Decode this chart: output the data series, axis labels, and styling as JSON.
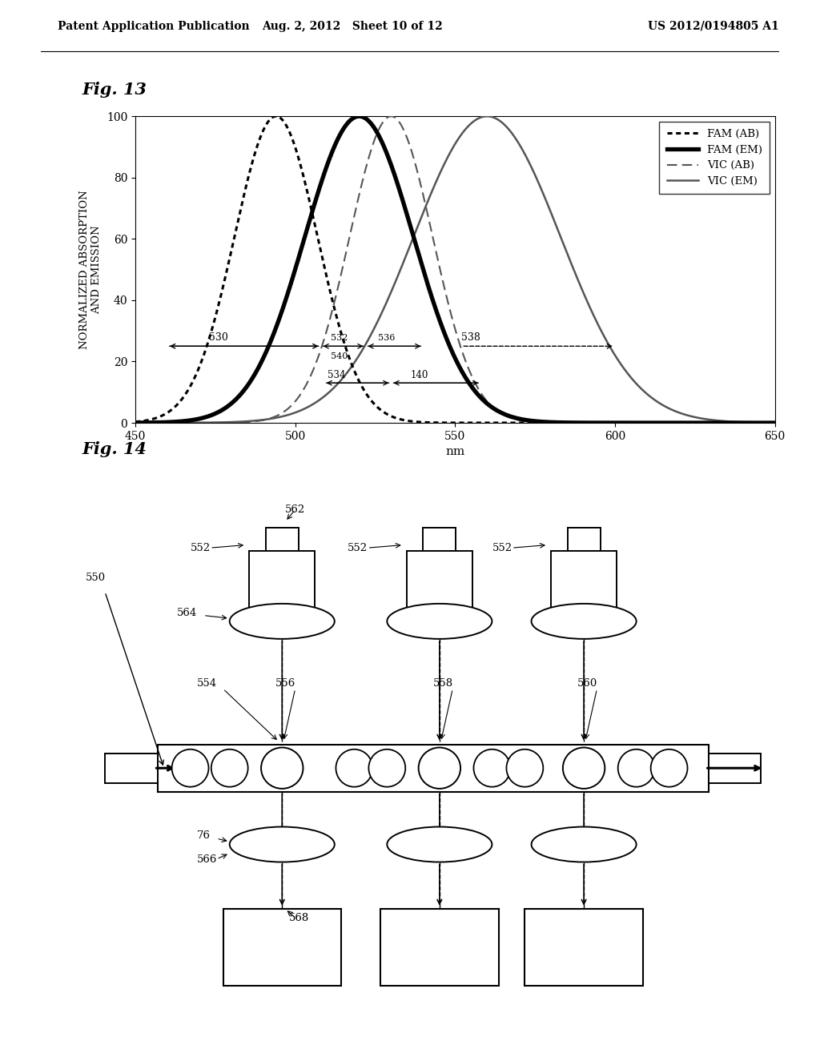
{
  "header_left": "Patent Application Publication",
  "header_mid": "Aug. 2, 2012   Sheet 10 of 12",
  "header_right": "US 2012/0194805 A1",
  "fig13_title": "Fig. 13",
  "fig14_title": "Fig. 14",
  "xlabel": "nm",
  "ylabel": "NORMALIZED ABSORPTION\nAND EMISSION",
  "xmin": 450,
  "xmax": 650,
  "ymin": 0,
  "ymax": 100,
  "yticks": [
    0,
    20,
    40,
    60,
    80,
    100
  ],
  "xticks": [
    450,
    500,
    550,
    600,
    650
  ],
  "fam_ab_peak": 494,
  "fam_ab_sigma": 13,
  "fam_em_peak": 520,
  "fam_em_sigma": 17,
  "vic_ab_peak": 530,
  "vic_ab_sigma": 13,
  "vic_em_peak": 560,
  "vic_em_sigma": 23,
  "bg_color": "#ffffff"
}
